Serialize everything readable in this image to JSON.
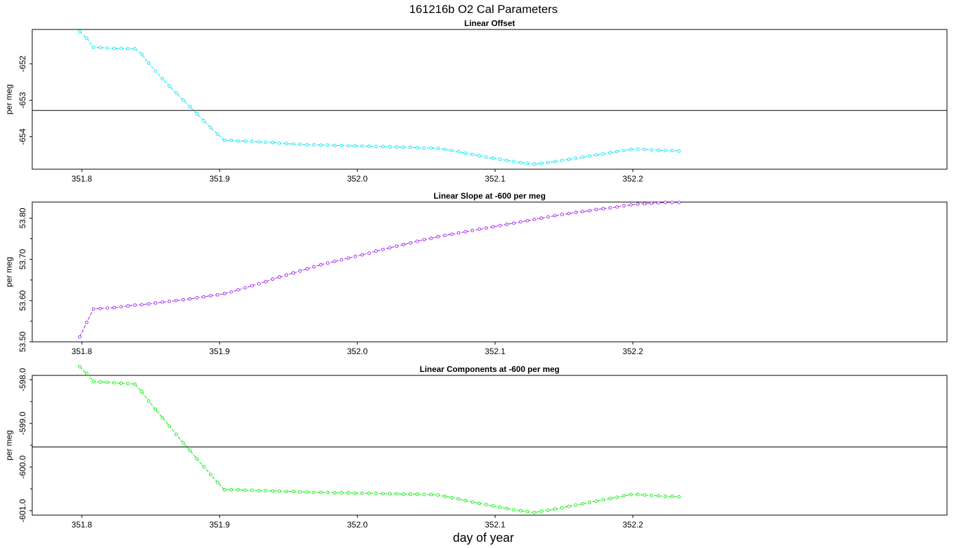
{
  "title": "161216b   O2 Cal Parameters",
  "xlabel": "day of year",
  "chart_data": [
    {
      "type": "line",
      "title": "Linear Offset",
      "ylabel": "per meg",
      "color": "#00e5ee",
      "xlim": [
        351.764,
        352.428
      ],
      "ylim": [
        -654.89,
        -651.06
      ],
      "xticks": [
        351.8,
        351.9,
        352.0,
        352.1,
        352.2
      ],
      "xtick_labels": [
        "351.8",
        "351.9",
        "352.0",
        "352.1",
        "352.2"
      ],
      "yticks": [
        -652,
        -653,
        -654
      ],
      "ytick_labels": [
        "-652",
        "-653",
        "-654"
      ],
      "hline": -653.28,
      "series": [
        {
          "x": [
            351.7985,
            351.8035,
            351.8085,
            351.8135,
            351.8185,
            351.8235,
            351.8285,
            351.8335,
            351.8385,
            351.8435,
            351.8485,
            351.8535,
            351.8585,
            351.8635,
            351.8685,
            351.8735,
            351.8785,
            351.8835,
            351.8885,
            351.8935,
            351.8985,
            351.9035,
            351.9085,
            351.9135,
            351.9185,
            351.9235,
            351.9285,
            351.9335,
            351.9385,
            351.9435,
            351.9485,
            351.9535,
            351.9585,
            351.9635,
            351.9685,
            351.9735,
            351.9785,
            351.9835,
            351.9885,
            351.9935,
            351.9985,
            352.0035,
            352.0085,
            352.0135,
            352.0185,
            352.0235,
            352.0285,
            352.0335,
            352.0385,
            352.0435,
            352.0485,
            352.0535,
            352.0585,
            352.0635,
            352.0685,
            352.0735,
            352.0785,
            352.0835,
            352.0885,
            352.0935,
            352.0985,
            352.1035,
            352.1085,
            352.1135,
            352.1185,
            352.1235,
            352.1285,
            352.1335,
            352.1385,
            352.1435,
            352.1485,
            352.1535,
            352.1585,
            352.1635,
            352.1685,
            352.1735,
            352.1785,
            352.1835,
            352.1885,
            352.1935,
            352.1985,
            352.2035,
            352.2085,
            352.2135,
            352.2185,
            352.2235,
            352.2285,
            352.2335
          ],
          "y": [
            -651.12,
            -651.3,
            -651.55,
            -651.56,
            -651.57,
            -651.58,
            -651.58,
            -651.59,
            -651.59,
            -651.74,
            -651.98,
            -652.2,
            -652.41,
            -652.61,
            -652.8,
            -652.99,
            -653.18,
            -653.37,
            -653.56,
            -653.75,
            -653.93,
            -654.1,
            -654.1,
            -654.12,
            -654.12,
            -654.13,
            -654.14,
            -654.15,
            -654.16,
            -654.18,
            -654.19,
            -654.2,
            -654.21,
            -654.22,
            -654.22,
            -654.23,
            -654.23,
            -654.24,
            -654.24,
            -654.25,
            -654.25,
            -654.26,
            -654.26,
            -654.27,
            -654.27,
            -654.28,
            -654.28,
            -654.29,
            -654.29,
            -654.3,
            -654.31,
            -654.31,
            -654.32,
            -654.35,
            -654.38,
            -654.41,
            -654.45,
            -654.49,
            -654.52,
            -654.56,
            -654.59,
            -654.62,
            -654.65,
            -654.68,
            -654.71,
            -654.73,
            -654.75,
            -654.73,
            -654.71,
            -654.68,
            -654.65,
            -654.62,
            -654.59,
            -654.56,
            -654.53,
            -654.5,
            -654.47,
            -654.44,
            -654.41,
            -654.38,
            -654.35,
            -654.34,
            -654.35,
            -654.36,
            -654.37,
            -654.38,
            -654.38,
            -654.39
          ]
        }
      ]
    },
    {
      "type": "line",
      "title": "Linear Slope at -600 per meg",
      "ylabel": "per meg",
      "color": "#a020f0",
      "xlim": [
        351.764,
        352.428
      ],
      "ylim": [
        53.5,
        53.839
      ],
      "xticks": [
        351.8,
        351.9,
        352.0,
        352.1,
        352.2
      ],
      "xtick_labels": [
        "351.8",
        "351.9",
        "352.0",
        "352.1",
        "352.2"
      ],
      "yticks": [
        53.5,
        53.6,
        53.7,
        53.8
      ],
      "ytick_labels": [
        "53.50",
        "53.60",
        "53.70",
        "53.80"
      ],
      "yminor": [
        53.55,
        53.65,
        53.75
      ],
      "series": [
        {
          "x": [
            351.7985,
            351.8035,
            351.8085,
            351.8135,
            351.8185,
            351.8235,
            351.8285,
            351.8335,
            351.8385,
            351.8435,
            351.8485,
            351.8535,
            351.8585,
            351.8635,
            351.8685,
            351.8735,
            351.8785,
            351.8835,
            351.8885,
            351.8935,
            351.8985,
            351.9035,
            351.9085,
            351.9135,
            351.9185,
            351.9235,
            351.9285,
            351.9335,
            351.9385,
            351.9435,
            351.9485,
            351.9535,
            351.9585,
            351.9635,
            351.9685,
            351.9735,
            351.9785,
            351.9835,
            351.9885,
            351.9935,
            351.9985,
            352.0035,
            352.0085,
            352.0135,
            352.0185,
            352.0235,
            352.0285,
            352.0335,
            352.0385,
            352.0435,
            352.0485,
            352.0535,
            352.0585,
            352.0635,
            352.0685,
            352.0735,
            352.0785,
            352.0835,
            352.0885,
            352.0935,
            352.0985,
            352.1035,
            352.1085,
            352.1135,
            352.1185,
            352.1235,
            352.1285,
            352.1335,
            352.1385,
            352.1435,
            352.1485,
            352.1535,
            352.1585,
            352.1635,
            352.1685,
            352.1735,
            352.1785,
            352.1835,
            352.1885,
            352.1935,
            352.1985,
            352.2035,
            352.2085,
            352.2135,
            352.2185,
            352.2235,
            352.2285,
            352.2335
          ],
          "y": [
            53.512,
            53.547,
            53.58,
            53.581,
            53.582,
            53.583,
            53.585,
            53.587,
            53.589,
            53.59,
            53.592,
            53.594,
            53.596,
            53.598,
            53.6,
            53.602,
            53.604,
            53.607,
            53.609,
            53.612,
            53.614,
            53.617,
            53.621,
            53.626,
            53.631,
            53.636,
            53.641,
            53.646,
            53.652,
            53.657,
            53.662,
            53.667,
            53.672,
            53.677,
            53.682,
            53.687,
            53.691,
            53.695,
            53.699,
            53.703,
            53.707,
            53.711,
            53.715,
            53.72,
            53.724,
            53.728,
            53.732,
            53.736,
            53.74,
            53.744,
            53.748,
            53.751,
            53.755,
            53.758,
            53.761,
            53.764,
            53.767,
            53.77,
            53.773,
            53.776,
            53.779,
            53.782,
            53.785,
            53.788,
            53.791,
            53.794,
            53.797,
            53.8,
            53.803,
            53.806,
            53.809,
            53.811,
            53.814,
            53.816,
            53.818,
            53.821,
            53.823,
            53.825,
            53.827,
            53.83,
            53.832,
            53.834,
            53.835,
            53.836,
            53.837,
            53.838,
            53.838,
            53.838
          ]
        }
      ]
    },
    {
      "type": "line",
      "title": "Linear Components at -600 per meg",
      "ylabel": "per meg",
      "color": "#00ee00",
      "xlim": [
        351.764,
        352.428
      ],
      "ylim": [
        -601.1,
        -597.9
      ],
      "xticks": [
        351.8,
        351.9,
        352.0,
        352.1,
        352.2
      ],
      "xtick_labels": [
        "351.8",
        "351.9",
        "352.0",
        "352.1",
        "352.2"
      ],
      "yticks": [
        -598.0,
        -599.0,
        -600.0,
        -601.0
      ],
      "ytick_labels": [
        "-598.0",
        "-599.0",
        "-600.0",
        "-601.0"
      ],
      "yminor": [
        -598.5,
        -599.5,
        -600.5
      ],
      "hline": -599.54,
      "series": [
        {
          "x": [
            351.7985,
            351.8035,
            351.8085,
            351.8135,
            351.8185,
            351.8235,
            351.8285,
            351.8335,
            351.8385,
            351.8435,
            351.8485,
            351.8535,
            351.8585,
            351.8635,
            351.8685,
            351.8735,
            351.8785,
            351.8835,
            351.8885,
            351.8935,
            351.8985,
            351.9035,
            351.9085,
            351.9135,
            351.9185,
            351.9235,
            351.9285,
            351.9335,
            351.9385,
            351.9435,
            351.9485,
            351.9535,
            351.9585,
            351.9635,
            351.9685,
            351.9735,
            351.9785,
            351.9835,
            351.9885,
            351.9935,
            351.9985,
            352.0035,
            352.0085,
            352.0135,
            352.0185,
            352.0235,
            352.0285,
            352.0335,
            352.0385,
            352.0435,
            352.0485,
            352.0535,
            352.0585,
            352.0635,
            352.0685,
            352.0735,
            352.0785,
            352.0835,
            352.0885,
            352.0935,
            352.0985,
            352.1035,
            352.1085,
            352.1135,
            352.1185,
            352.1235,
            352.1285,
            352.1335,
            352.1385,
            352.1435,
            352.1485,
            352.1535,
            352.1585,
            352.1635,
            352.1685,
            352.1735,
            352.1785,
            352.1835,
            352.1885,
            352.1935,
            352.1985,
            352.2035,
            352.2085,
            352.2135,
            352.2185,
            352.2235,
            352.2285,
            352.2335
          ],
          "y": [
            -597.7,
            -597.86,
            -598.04,
            -598.05,
            -598.06,
            -598.07,
            -598.08,
            -598.09,
            -598.1,
            -598.27,
            -598.49,
            -598.68,
            -598.87,
            -599.06,
            -599.25,
            -599.44,
            -599.62,
            -599.81,
            -599.99,
            -600.17,
            -600.35,
            -600.52,
            -600.52,
            -600.52,
            -600.53,
            -600.53,
            -600.54,
            -600.54,
            -600.55,
            -600.55,
            -600.56,
            -600.56,
            -600.57,
            -600.57,
            -600.58,
            -600.58,
            -600.58,
            -600.59,
            -600.59,
            -600.59,
            -600.6,
            -600.6,
            -600.6,
            -600.6,
            -600.61,
            -600.61,
            -600.61,
            -600.62,
            -600.62,
            -600.62,
            -600.63,
            -600.63,
            -600.64,
            -600.67,
            -600.7,
            -600.73,
            -600.77,
            -600.8,
            -600.83,
            -600.86,
            -600.89,
            -600.92,
            -600.95,
            -600.98,
            -601.0,
            -601.02,
            -601.04,
            -601.01,
            -600.99,
            -600.96,
            -600.93,
            -600.9,
            -600.87,
            -600.84,
            -600.81,
            -600.78,
            -600.75,
            -600.72,
            -600.69,
            -600.66,
            -600.63,
            -600.63,
            -600.64,
            -600.65,
            -600.66,
            -600.67,
            -600.67,
            -600.68
          ]
        }
      ]
    }
  ]
}
